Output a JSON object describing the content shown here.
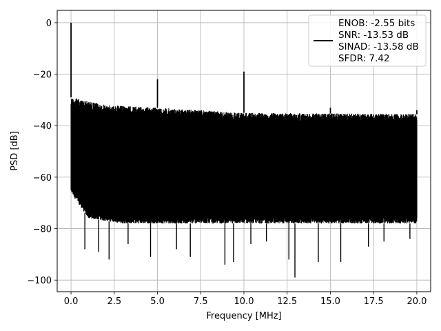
{
  "chart_data": {
    "type": "line",
    "title": "",
    "xlabel": "Frequency [MHz]",
    "ylabel": "PSD [dB]",
    "xlim": [
      -0.8,
      20.8
    ],
    "ylim": [
      -104.5,
      4.8
    ],
    "grid": true,
    "x_ticks": [
      0.0,
      2.5,
      5.0,
      7.5,
      10.0,
      12.5,
      15.0,
      17.5,
      20.0
    ],
    "x_tick_labels": [
      "0.0",
      "2.5",
      "5.0",
      "7.5",
      "10.0",
      "12.5",
      "15.0",
      "17.5",
      "20.0"
    ],
    "y_ticks": [
      0,
      -20,
      -40,
      -60,
      -80,
      -100
    ],
    "y_tick_labels": [
      "0",
      "−20",
      "−40",
      "−60",
      "−80",
      "−100"
    ],
    "legend_position": "top-right",
    "series": [
      {
        "color": "#000000",
        "x_range": [
          0,
          20
        ],
        "noise_ceiling_db": [
          [
            0,
            -29
          ],
          [
            2,
            -32
          ],
          [
            5,
            -33
          ],
          [
            10,
            -35
          ],
          [
            20,
            -35.5
          ]
        ],
        "noise_floor_db": [
          [
            0,
            -66
          ],
          [
            1,
            -76
          ],
          [
            3,
            -78
          ],
          [
            20,
            -78
          ]
        ],
        "spikes": [
          {
            "x": 0.0,
            "y": 0
          },
          {
            "x": 5.0,
            "y": -22
          },
          {
            "x": 10.0,
            "y": -19
          },
          {
            "x": 15.0,
            "y": -33
          },
          {
            "x": 20.0,
            "y": -34
          }
        ],
        "dips": [
          {
            "x": 0.8,
            "y": -88
          },
          {
            "x": 1.6,
            "y": -89
          },
          {
            "x": 2.2,
            "y": -92
          },
          {
            "x": 3.3,
            "y": -86
          },
          {
            "x": 4.6,
            "y": -91
          },
          {
            "x": 6.1,
            "y": -88
          },
          {
            "x": 6.9,
            "y": -91
          },
          {
            "x": 8.9,
            "y": -94
          },
          {
            "x": 9.4,
            "y": -93
          },
          {
            "x": 10.4,
            "y": -86
          },
          {
            "x": 11.3,
            "y": -85
          },
          {
            "x": 12.6,
            "y": -92
          },
          {
            "x": 12.95,
            "y": -99
          },
          {
            "x": 14.3,
            "y": -93
          },
          {
            "x": 15.6,
            "y": -93
          },
          {
            "x": 17.2,
            "y": -87
          },
          {
            "x": 18.1,
            "y": -85
          },
          {
            "x": 19.6,
            "y": -84
          }
        ]
      }
    ],
    "legend": {
      "lines": [
        "ENOB: -2.55 bits",
        "SNR: -13.53 dB",
        "SINAD: -13.58 dB",
        "SFDR: 7.42"
      ]
    }
  }
}
